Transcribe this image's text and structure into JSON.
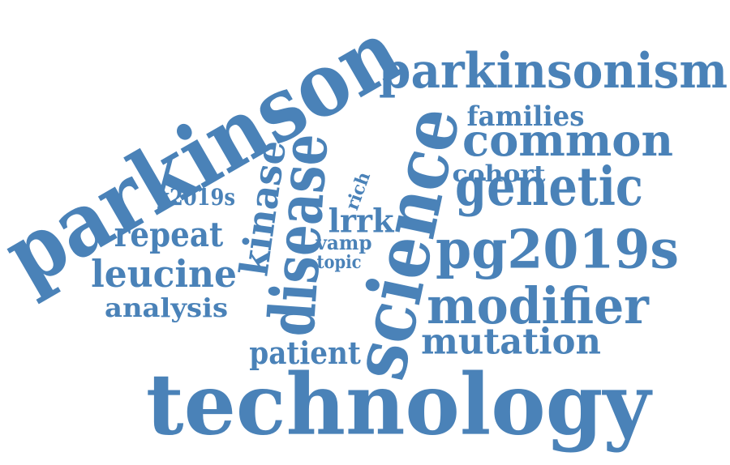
{
  "color": "#4a82b8",
  "words": [
    {
      "text": "technology",
      "name": "word-technology"
    },
    {
      "text": "parkinson",
      "name": "word-parkinson"
    },
    {
      "text": "science",
      "name": "word-science"
    },
    {
      "text": "disease",
      "name": "word-disease"
    },
    {
      "text": "parkinsonism",
      "name": "word-parkinsonism"
    },
    {
      "text": "pg2019s",
      "name": "word-pg2019s"
    },
    {
      "text": "modifier",
      "name": "word-modifier"
    },
    {
      "text": "genetic",
      "name": "word-genetic"
    },
    {
      "text": "common",
      "name": "word-common"
    },
    {
      "text": "mutation",
      "name": "word-mutation"
    },
    {
      "text": "kinase",
      "name": "word-kinase"
    },
    {
      "text": "leucine",
      "name": "word-leucine"
    },
    {
      "text": "repeat",
      "name": "word-repeat"
    },
    {
      "text": "patient",
      "name": "word-patient"
    },
    {
      "text": "lrrk",
      "name": "word-lrrk"
    },
    {
      "text": "analysis",
      "name": "word-analysis"
    },
    {
      "text": "families",
      "name": "word-families"
    },
    {
      "text": "cohort",
      "name": "word-cohort"
    },
    {
      "text": "g2019s",
      "name": "word-g2019s"
    },
    {
      "text": "vamp",
      "name": "word-vamp"
    },
    {
      "text": "topic",
      "name": "word-topic"
    },
    {
      "text": "rich",
      "name": "word-rich"
    }
  ]
}
